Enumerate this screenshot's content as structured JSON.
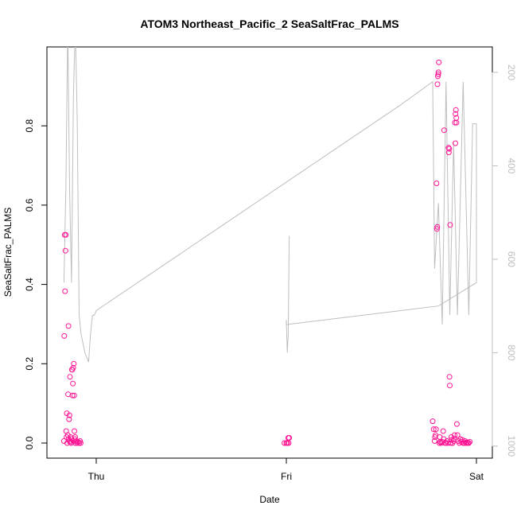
{
  "chart_data": {
    "type": "scatter",
    "title": "ATOM3 Northeast_Pacific_2 SeaSaltFrac_PALMS",
    "xlabel": "Date",
    "ylabel": "SeaSaltFrac_PALMS",
    "x_ticks": [
      "Thu",
      "Fri",
      "Sat"
    ],
    "y_ticks": [
      "0.0",
      "0.2",
      "0.4",
      "0.6",
      "0.8"
    ],
    "y2_ticks": [
      "200",
      "400",
      "600",
      "800",
      "1000"
    ],
    "xlim_days": [
      -0.2,
      2.02
    ],
    "ylim": [
      -0.035,
      1.0
    ],
    "y2lim": [
      1030,
      140
    ],
    "grid": false,
    "legend": "none",
    "colors": {
      "points": "#ff1493",
      "pressure_line": "#bebebe",
      "axes": "#000000"
    },
    "series": [
      {
        "marker": "circle",
        "points": [
          [
            -0.17,
            0.005
          ],
          [
            -0.168,
            0.27
          ],
          [
            -0.166,
            0.525
          ],
          [
            -0.164,
            0.383
          ],
          [
            -0.162,
            0.485
          ],
          [
            -0.16,
            0.525
          ],
          [
            -0.158,
            0.03
          ],
          [
            -0.156,
            0.015
          ],
          [
            -0.155,
            0.075
          ],
          [
            -0.153,
            0.0
          ],
          [
            -0.15,
            0.02
          ],
          [
            -0.148,
            0.123
          ],
          [
            -0.146,
            0.295
          ],
          [
            -0.145,
            0.01
          ],
          [
            -0.143,
            0.06
          ],
          [
            -0.141,
            0.07
          ],
          [
            -0.14,
            0.005
          ],
          [
            -0.138,
            0.167
          ],
          [
            -0.137,
            0.002
          ],
          [
            -0.135,
            0.015
          ],
          [
            -0.132,
            0.0
          ],
          [
            -0.13,
            0.01
          ],
          [
            -0.128,
            0.185
          ],
          [
            -0.126,
            0.185
          ],
          [
            -0.125,
            0.12
          ],
          [
            -0.123,
            0.15
          ],
          [
            -0.121,
            0.19
          ],
          [
            -0.12,
            0.005
          ],
          [
            -0.118,
            0.2
          ],
          [
            -0.116,
            0.12
          ],
          [
            -0.115,
            0.03
          ],
          [
            -0.113,
            0.01
          ],
          [
            -0.111,
            0.015
          ],
          [
            -0.11,
            0.0
          ],
          [
            -0.105,
            0.005
          ],
          [
            -0.1,
            0.0
          ],
          [
            -0.095,
            0.003
          ],
          [
            -0.09,
            0.0
          ],
          [
            -0.085,
            0.005
          ],
          [
            -0.082,
            0.0
          ],
          [
            0.99,
            0.0
          ],
          [
            1.0,
            0.0
          ],
          [
            1.005,
            0.0
          ],
          [
            1.01,
            0.013
          ],
          [
            1.015,
            0.013
          ],
          [
            1.012,
            0.0
          ],
          [
            1.77,
            0.055
          ],
          [
            1.775,
            0.035
          ],
          [
            1.78,
            0.005
          ],
          [
            1.782,
            0.015
          ],
          [
            1.785,
            0.02
          ],
          [
            1.787,
            0.035
          ],
          [
            1.79,
            0.655
          ],
          [
            1.792,
            0.54
          ],
          [
            1.794,
            0.545
          ],
          [
            1.795,
            0.905
          ],
          [
            1.797,
            0.925
          ],
          [
            1.799,
            0.93
          ],
          [
            1.8,
            0.935
          ],
          [
            1.802,
            0.96
          ],
          [
            1.805,
            0.0
          ],
          [
            1.807,
            0.015
          ],
          [
            1.81,
            0.003
          ],
          [
            1.815,
            0.0
          ],
          [
            1.82,
            0.003
          ],
          [
            1.825,
            0.03
          ],
          [
            1.828,
            0.01
          ],
          [
            1.83,
            0.789
          ],
          [
            1.835,
            0.0
          ],
          [
            1.84,
            0.0
          ],
          [
            1.845,
            0.005
          ],
          [
            1.85,
            0.0
          ],
          [
            1.853,
            0.745
          ],
          [
            1.855,
            0.733
          ],
          [
            1.857,
            0.742
          ],
          [
            1.858,
            0.167
          ],
          [
            1.86,
            0.145
          ],
          [
            1.862,
            0.55
          ],
          [
            1.865,
            0.0
          ],
          [
            1.868,
            0.015
          ],
          [
            1.87,
            0.008
          ],
          [
            1.875,
            0.0
          ],
          [
            1.88,
            0.005
          ],
          [
            1.882,
            0.01
          ],
          [
            1.885,
            0.02
          ],
          [
            1.887,
            0.808
          ],
          [
            1.889,
            0.756
          ],
          [
            1.89,
            0.83
          ],
          [
            1.892,
            0.84
          ],
          [
            1.894,
            0.82
          ],
          [
            1.895,
            0.808
          ],
          [
            1.897,
            0.048
          ],
          [
            1.9,
            0.02
          ],
          [
            1.905,
            0.005
          ],
          [
            1.91,
            0.0
          ],
          [
            1.915,
            0.01
          ],
          [
            1.92,
            0.003
          ],
          [
            1.925,
            0.008
          ],
          [
            1.93,
            0.0
          ],
          [
            1.935,
            0.0
          ],
          [
            1.94,
            0.005
          ],
          [
            1.945,
            0.0
          ],
          [
            1.95,
            0.002
          ],
          [
            1.955,
            0.0
          ],
          [
            1.96,
            0.0
          ],
          [
            1.965,
            0.003
          ]
        ]
      },
      {
        "axis": "right",
        "type": "line",
        "points": [
          [
            -0.17,
            650
          ],
          [
            -0.16,
            450
          ],
          [
            -0.15,
            100
          ],
          [
            -0.14,
            450
          ],
          [
            -0.13,
            650
          ],
          [
            -0.12,
            250
          ],
          [
            -0.11,
            100
          ],
          [
            -0.1,
            300
          ],
          [
            -0.09,
            720
          ],
          [
            -0.08,
            760
          ],
          [
            -0.06,
            800
          ],
          [
            -0.04,
            820
          ],
          [
            -0.03,
            760
          ],
          [
            -0.02,
            720
          ],
          [
            -0.01,
            720
          ],
          [
            0.0,
            710
          ],
          [
            0.4,
            600
          ],
          [
            0.8,
            490
          ],
          [
            1.2,
            380
          ],
          [
            1.6,
            270
          ],
          [
            1.77,
            220
          ],
          [
            1.78,
            620
          ],
          [
            1.8,
            480
          ],
          [
            1.82,
            740
          ],
          [
            1.84,
            220
          ],
          [
            1.86,
            720
          ],
          [
            1.88,
            350
          ],
          [
            1.9,
            720
          ],
          [
            1.93,
            220
          ],
          [
            1.96,
            720
          ],
          [
            1.98,
            310
          ],
          [
            2.0,
            310
          ],
          [
            2.0,
            650
          ],
          [
            1.8,
            700
          ],
          [
            1.0,
            740
          ],
          [
            1.0,
            730
          ],
          [
            1.005,
            800
          ],
          [
            1.01,
            760
          ],
          [
            1.015,
            550
          ]
        ]
      }
    ]
  }
}
